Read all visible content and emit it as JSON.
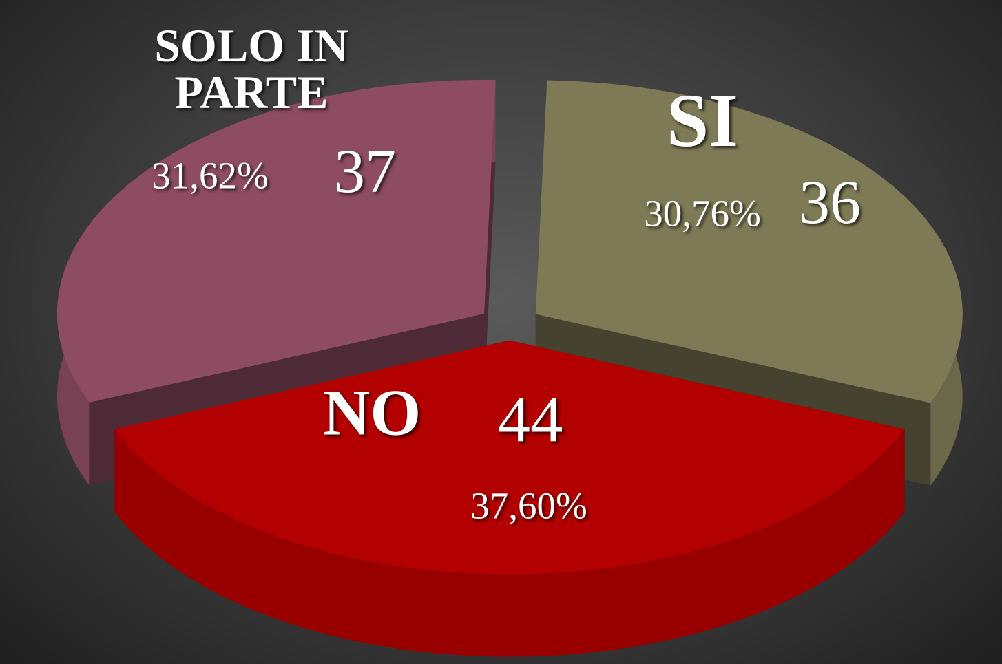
{
  "chart_data": {
    "type": "pie3d",
    "categories": [
      "SI",
      "NO",
      "SOLO IN PARTE"
    ],
    "values": [
      36,
      44,
      37
    ],
    "percent_labels": [
      "30,76%",
      "37,60%",
      "31,62%"
    ],
    "colors": [
      "#7d7a55",
      "#b30000",
      "#8e4c63"
    ]
  }
}
